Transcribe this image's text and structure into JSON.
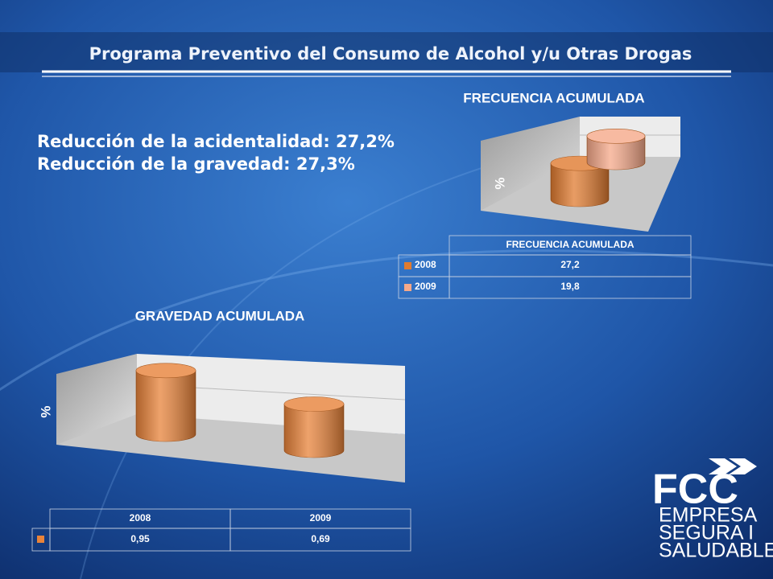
{
  "header": {
    "title": "Programa Preventivo del Consumo de Alcohol y/u Otras Drogas"
  },
  "highlights": [
    "Reducción de la acidentalidad: 27,2%",
    "Reducción de la gravedad: 27,3%"
  ],
  "chart_data": [
    {
      "type": "bar",
      "title": "FRECUENCIA ACUMULADA",
      "y_label": "%",
      "categories": [
        "FRECUENCIA ACUMULADA"
      ],
      "series": [
        {
          "name": "2008",
          "color": "#e07b30",
          "values": [
            27.2
          ],
          "value_labels": [
            "27,2"
          ]
        },
        {
          "name": "2009",
          "color": "#f6a98a",
          "values": [
            19.8
          ],
          "value_labels": [
            "19,8"
          ]
        }
      ],
      "ylim": [
        0,
        40
      ]
    },
    {
      "type": "bar",
      "title": "GRAVEDAD ACUMULADA",
      "y_label": "%",
      "categories": [
        "2008",
        "2009"
      ],
      "series": [
        {
          "color": "#e8833a",
          "values": [
            0.95,
            0.69
          ],
          "value_labels": [
            "0,95",
            "0,69"
          ]
        }
      ],
      "ylim": [
        0,
        1.2
      ]
    }
  ],
  "logo": {
    "brand": "FCC",
    "lines": [
      "EMPRESA",
      "SEGURA I",
      "SALUDABLE"
    ]
  }
}
